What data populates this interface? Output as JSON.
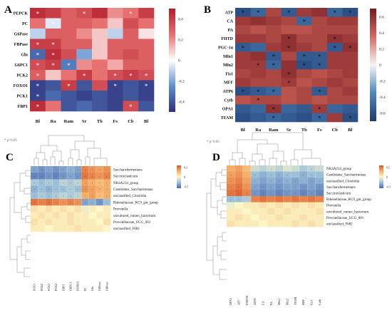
{
  "panels": [
    {
      "id": "A",
      "letter": "A",
      "type": "heatmap",
      "rows": [
        "PEPCK",
        "PC",
        "G6Pase",
        "FBPase",
        "Glu",
        "G6PC1",
        "PCK2",
        "FOXO1",
        "PCK1",
        "FBP1"
      ],
      "cols": [
        "Bl",
        "Ra",
        "Ram",
        "Sr",
        "Tb",
        "Fs",
        "Cb",
        "Bl"
      ],
      "legend_ticks": [
        "0.4",
        "0.2",
        "0",
        "-0.2",
        "-0.4"
      ],
      "legend_range": [
        -0.5,
        0.5
      ]
    },
    {
      "id": "B",
      "letter": "B",
      "type": "heatmap",
      "rows": [
        "ATP",
        "CA",
        "PA",
        "FHTD",
        "PGC-1α",
        "Mfn1",
        "Mfn2",
        "Fis1",
        "MFF",
        "ATP6",
        "Cytb",
        "OPA1",
        "TFAM"
      ],
      "cols": [
        "Bl",
        "Ra",
        "Ram",
        "Sr",
        "Tb",
        "Fs",
        "Cb",
        "Bl"
      ],
      "legend_ticks": [
        "0.6",
        "0.4",
        "0.2",
        "0",
        "-0.2",
        "-0.4",
        "-0.6"
      ],
      "legend_range": [
        -0.7,
        0.7
      ]
    },
    {
      "id": "C",
      "letter": "C",
      "type": "heatmap",
      "footnote": "* p<0.05",
      "rows": [
        "Saccharofermentans",
        "Succiniclasticum",
        "NK4A214_group",
        "Candidatus_Saccharimonas",
        "unclassified_Clostridia",
        "Rikenellaceae_RC9_gut_group",
        "Prevotella",
        "uncultured_rumen_bacterium",
        "Prevotellaceae_UCG_001",
        "unclassified_F082"
      ],
      "cols": [
        "FCK1",
        "PCK2",
        "FCK1",
        "PCK2",
        "FBP1",
        "G6PC1",
        "FOXO1",
        "PC",
        "Glu",
        "G6Pase",
        "FBPase"
      ],
      "legend_ticks": [
        "0.5",
        "0",
        "-0.5"
      ],
      "legend_range": [
        -0.6,
        0.6
      ]
    },
    {
      "id": "D",
      "letter": "D",
      "type": "heatmap",
      "footnote": "* p<0.05",
      "rows": [
        "NK4A214_group",
        "Candidatus_Saccharimonas",
        "unclassified_Clostridia",
        "Saccharofermentans",
        "Succiniclasticum",
        "Rikenellaceae_RC9_gut_group",
        "Prevotella",
        "uncultured_rumen_bacterium",
        "Prevotellaceae_UCG_001",
        "unclassified_F082"
      ],
      "cols": [
        "OPA1",
        "ATP",
        "PFHTD",
        "ATP6",
        "CA",
        "PA",
        "Mfn1",
        "Mfn2",
        "TFAM",
        "MFF",
        "Fis1",
        "Cytb"
      ],
      "legend_ticks": [
        "0.5",
        "0",
        "-0.5"
      ],
      "legend_range": [
        -0.6,
        0.6
      ]
    }
  ],
  "chart_data": [
    {
      "type": "heatmap",
      "panel": "A",
      "rows": [
        "PEPCK",
        "PC",
        "G6Pase",
        "FBPase",
        "Glu",
        "G6PC1",
        "PCK2",
        "FOXO1",
        "PCK1",
        "FBP1"
      ],
      "columns": [
        "Bl",
        "Ra",
        "Ram",
        "Sr",
        "Tb",
        "Fs",
        "Cb",
        "Bl"
      ],
      "values": [
        [
          0.45,
          0.4,
          0.3,
          0.35,
          0.45,
          0.2,
          0.25,
          0.4
        ],
        [
          0.25,
          -0.05,
          0.3,
          0.3,
          0.25,
          0.1,
          0.35,
          0.25
        ],
        [
          -0.1,
          0.3,
          0.3,
          0.2,
          0.1,
          -0.1,
          0.3,
          0.05
        ],
        [
          0.4,
          0.4,
          0.3,
          0.3,
          0.1,
          0.3,
          0.3,
          0.3
        ],
        [
          -0.35,
          0.45,
          0.35,
          -0.2,
          0.1,
          0.3,
          0.35,
          0.3
        ],
        [
          0.35,
          0.4,
          -0.3,
          0.2,
          0.25,
          0.15,
          0.3,
          0.3
        ],
        [
          0.3,
          0.1,
          0.25,
          0.4,
          0.25,
          0.35,
          0.4,
          0.35
        ],
        [
          -0.45,
          -0.4,
          0.4,
          -0.4,
          0.35,
          -0.45,
          -0.4,
          -0.45
        ],
        [
          -0.45,
          -0.35,
          -0.4,
          -0.45,
          -0.4,
          -0.45,
          -0.4,
          -0.45
        ],
        [
          0.45,
          0.25,
          -0.4,
          -0.35,
          -0.4,
          -0.45,
          0.35,
          -0.4
        ]
      ],
      "significant": [
        [
          1,
          0,
          0,
          1,
          0,
          0,
          1,
          0
        ],
        [
          0,
          1,
          0,
          0,
          0,
          0,
          0,
          0
        ],
        [
          0,
          0,
          0,
          0,
          0,
          0,
          0,
          0
        ],
        [
          1,
          1,
          0,
          0,
          0,
          0,
          0,
          0
        ],
        [
          1,
          1,
          0,
          0,
          0,
          0,
          0,
          0
        ],
        [
          1,
          1,
          1,
          0,
          0,
          0,
          0,
          0
        ],
        [
          1,
          0,
          0,
          1,
          0,
          1,
          1,
          1
        ],
        [
          1,
          0,
          1,
          0,
          0,
          1,
          0,
          1
        ],
        [
          1,
          0,
          0,
          0,
          0,
          0,
          0,
          0
        ],
        [
          1,
          0,
          0,
          0,
          0,
          0,
          1,
          0
        ]
      ],
      "color_scale": [
        -0.5,
        0.5
      ]
    },
    {
      "type": "heatmap",
      "panel": "B",
      "rows": [
        "ATP",
        "CA",
        "PA",
        "FHTD",
        "PGC-1α",
        "Mfn1",
        "Mfn2",
        "Fis1",
        "MFF",
        "ATP6",
        "Cytb",
        "OPA1",
        "TFAM"
      ],
      "columns": [
        "Bl",
        "Ra",
        "Ram",
        "Sr",
        "Tb",
        "Fs",
        "Cb",
        "Bl"
      ],
      "values": [
        [
          -0.6,
          -0.5,
          0.5,
          -0.55,
          0.55,
          0.6,
          -0.5,
          -0.6
        ],
        [
          0.55,
          0.6,
          0.55,
          0.5,
          -0.5,
          0.5,
          0.55,
          0.55
        ],
        [
          0.5,
          0.45,
          0.5,
          0.45,
          0.45,
          0.5,
          0.5,
          0.5
        ],
        [
          0.55,
          0.55,
          0.5,
          0.6,
          0.5,
          0.5,
          0.6,
          0.55
        ],
        [
          -0.55,
          -0.5,
          0.55,
          0.6,
          0.55,
          0.5,
          -0.55,
          0.6
        ],
        [
          0.55,
          0.6,
          -0.55,
          0.5,
          -0.55,
          -0.55,
          0.55,
          0.55
        ],
        [
          0.55,
          0.55,
          -0.5,
          0.6,
          -0.6,
          -0.55,
          0.55,
          0.55
        ],
        [
          0.5,
          0.55,
          0.5,
          0.6,
          0.5,
          0.45,
          0.5,
          0.55
        ],
        [
          0.55,
          0.5,
          0.5,
          0.55,
          0.45,
          0.5,
          0.55,
          0.5
        ],
        [
          -0.6,
          -0.55,
          -0.5,
          0.45,
          0.5,
          -0.55,
          0.5,
          0.55
        ],
        [
          0.45,
          0.5,
          0.5,
          0.45,
          0.5,
          0.45,
          0.5,
          0.5
        ],
        [
          -0.55,
          -0.5,
          0.6,
          -0.5,
          -0.55,
          0.55,
          -0.5,
          -0.55
        ],
        [
          -0.6,
          -0.55,
          -0.5,
          -0.55,
          -0.6,
          -0.5,
          0.55,
          -0.6
        ]
      ],
      "significant": [
        [
          1,
          1,
          0,
          1,
          0,
          0,
          1,
          1
        ],
        [
          0,
          0,
          0,
          0,
          1,
          0,
          0,
          0
        ],
        [
          0,
          0,
          0,
          0,
          0,
          0,
          0,
          0
        ],
        [
          0,
          0,
          0,
          1,
          0,
          0,
          1,
          0
        ],
        [
          1,
          0,
          0,
          1,
          0,
          0,
          1,
          1
        ],
        [
          0,
          0,
          1,
          0,
          1,
          1,
          0,
          0
        ],
        [
          0,
          1,
          1,
          0,
          1,
          1,
          0,
          0
        ],
        [
          0,
          0,
          0,
          1,
          0,
          0,
          0,
          0
        ],
        [
          0,
          0,
          0,
          1,
          0,
          0,
          0,
          0
        ],
        [
          1,
          1,
          1,
          0,
          0,
          1,
          0,
          0
        ],
        [
          0,
          1,
          0,
          0,
          0,
          0,
          0,
          0
        ],
        [
          0,
          0,
          1,
          0,
          0,
          1,
          0,
          0
        ],
        [
          0,
          0,
          1,
          0,
          0,
          1,
          0,
          1
        ]
      ],
      "color_scale": [
        -0.7,
        0.7
      ]
    },
    {
      "type": "heatmap",
      "panel": "C",
      "rows": [
        "Saccharofermentans",
        "Succiniclasticum",
        "NK4A214_group",
        "Candidatus_Saccharimonas",
        "unclassified_Clostridia",
        "Rikenellaceae_RC9_gut_group",
        "Prevotella",
        "uncultured_rumen_bacterium",
        "Prevotellaceae_UCG_001",
        "unclassified_F082"
      ],
      "columns": [
        "FCK1",
        "PCK2",
        "FCK1",
        "PCK2",
        "FBP1",
        "G6PC1",
        "FOXO1",
        "PC",
        "Glu",
        "G6Pase",
        "FBPase"
      ],
      "values": [
        [
          -0.4,
          -0.45,
          -0.4,
          -0.45,
          -0.4,
          -0.35,
          -0.4,
          0.45,
          0.4,
          0.35,
          0.4
        ],
        [
          -0.5,
          -0.5,
          -0.45,
          -0.5,
          -0.45,
          -0.4,
          -0.45,
          0.5,
          0.45,
          0.4,
          0.45
        ],
        [
          -0.25,
          -0.3,
          -0.25,
          -0.3,
          -0.2,
          -0.25,
          -0.2,
          0.35,
          0.3,
          0.25,
          0.3
        ],
        [
          -0.35,
          -0.3,
          -0.35,
          -0.3,
          -0.3,
          -0.25,
          -0.3,
          0.4,
          0.35,
          0.3,
          0.3
        ],
        [
          -0.3,
          -0.25,
          -0.3,
          -0.25,
          -0.2,
          -0.25,
          -0.2,
          0.3,
          0.35,
          0.25,
          0.3
        ],
        [
          0.5,
          0.45,
          0.5,
          0.45,
          0.4,
          0.45,
          0.4,
          -0.4,
          -0.35,
          -0.45,
          -0.3
        ],
        [
          0.1,
          0.05,
          0.1,
          0.05,
          0.1,
          0.05,
          0.1,
          -0.05,
          0.05,
          0.0,
          0.05
        ],
        [
          0.05,
          0.1,
          0.05,
          0.1,
          0.05,
          0.1,
          0.05,
          0.05,
          0.0,
          0.05,
          0.05
        ],
        [
          0.1,
          0.05,
          0.1,
          0.05,
          0.05,
          0.1,
          0.05,
          0.05,
          0.05,
          0.0,
          0.1
        ],
        [
          0.05,
          0.05,
          0.0,
          0.05,
          0.05,
          0.05,
          0.1,
          0.05,
          0.05,
          0.05,
          0.0
        ]
      ],
      "significant": [
        [
          1,
          1,
          1,
          1,
          1,
          1,
          1,
          1,
          1,
          1,
          1
        ],
        [
          1,
          1,
          1,
          1,
          1,
          1,
          1,
          1,
          1,
          1,
          1
        ],
        [
          1,
          1,
          1,
          1,
          1,
          1,
          1,
          1,
          1,
          1,
          1
        ],
        [
          1,
          1,
          1,
          1,
          1,
          1,
          1,
          1,
          1,
          1,
          1
        ],
        [
          1,
          1,
          1,
          1,
          1,
          1,
          1,
          1,
          1,
          1,
          1
        ],
        [
          1,
          1,
          1,
          1,
          1,
          1,
          1,
          1,
          1,
          1,
          1
        ],
        [
          0,
          0,
          0,
          0,
          0,
          0,
          0,
          0,
          0,
          0,
          0
        ],
        [
          0,
          0,
          0,
          0,
          0,
          0,
          0,
          0,
          0,
          0,
          0
        ],
        [
          0,
          0,
          0,
          0,
          0,
          0,
          0,
          0,
          0,
          0,
          0
        ],
        [
          0,
          0,
          0,
          0,
          0,
          0,
          0,
          0,
          0,
          0,
          0
        ]
      ],
      "color_scale": [
        -0.6,
        0.6
      ]
    },
    {
      "type": "heatmap",
      "panel": "D",
      "rows": [
        "NK4A214_group",
        "Candidatus_Saccharimonas",
        "unclassified_Clostridia",
        "Saccharofermentans",
        "Succiniclasticum",
        "Rikenellaceae_RC9_gut_group",
        "Prevotella",
        "uncultured_rumen_bacterium",
        "Prevotellaceae_UCG_001",
        "unclassified_F082"
      ],
      "columns": [
        "OPA1",
        "ATP",
        "PFHTD",
        "ATP6",
        "CA",
        "PA",
        "Mfn1",
        "Mfn2",
        "TFAM",
        "MFF",
        "Fis1",
        "Cytb"
      ],
      "values": [
        [
          0.3,
          0.35,
          0.25,
          -0.15,
          -0.2,
          -0.15,
          -0.2,
          -0.1,
          -0.15,
          -0.25,
          -0.2,
          -0.15
        ],
        [
          0.35,
          0.4,
          0.3,
          -0.3,
          -0.35,
          -0.3,
          -0.35,
          -0.3,
          -0.3,
          -0.35,
          -0.3,
          -0.3
        ],
        [
          0.4,
          0.45,
          0.35,
          -0.35,
          -0.4,
          -0.35,
          -0.4,
          -0.35,
          -0.4,
          -0.35,
          -0.4,
          -0.35
        ],
        [
          0.45,
          0.5,
          0.4,
          -0.4,
          -0.45,
          -0.4,
          -0.45,
          -0.4,
          -0.4,
          -0.45,
          -0.4,
          -0.45
        ],
        [
          0.5,
          0.55,
          0.45,
          -0.45,
          -0.5,
          -0.45,
          -0.5,
          -0.45,
          -0.45,
          -0.5,
          -0.45,
          -0.5
        ],
        [
          -0.3,
          -0.3,
          -0.25,
          0.45,
          0.5,
          0.45,
          0.5,
          0.45,
          0.5,
          0.45,
          0.5,
          0.45
        ],
        [
          -0.05,
          0.0,
          0.05,
          0.05,
          0.1,
          0.05,
          0.1,
          0.05,
          0.1,
          0.05,
          0.1,
          0.05
        ],
        [
          0.05,
          0.05,
          0.0,
          0.05,
          0.05,
          0.1,
          0.05,
          0.1,
          0.05,
          0.05,
          0.05,
          0.1
        ],
        [
          0.05,
          0.1,
          0.05,
          0.0,
          0.05,
          0.05,
          0.1,
          0.05,
          0.05,
          0.1,
          0.05,
          0.05
        ],
        [
          0.1,
          0.05,
          0.05,
          0.05,
          0.0,
          0.05,
          0.05,
          0.05,
          0.1,
          0.05,
          0.1,
          0.05
        ]
      ],
      "significant": [
        [
          0,
          0,
          0,
          0,
          0,
          1,
          0,
          0,
          0,
          0,
          1,
          0
        ],
        [
          1,
          0,
          0,
          1,
          0,
          1,
          1,
          1,
          0,
          1,
          1,
          0
        ],
        [
          1,
          0,
          0,
          1,
          0,
          1,
          1,
          1,
          1,
          0,
          1,
          1
        ],
        [
          1,
          1,
          0,
          1,
          1,
          1,
          1,
          1,
          1,
          1,
          1,
          1
        ],
        [
          1,
          1,
          1,
          1,
          1,
          1,
          1,
          1,
          1,
          1,
          1,
          1
        ],
        [
          1,
          1,
          0,
          0,
          0,
          0,
          0,
          0,
          0,
          0,
          0,
          0
        ],
        [
          0,
          0,
          0,
          0,
          0,
          0,
          0,
          0,
          0,
          0,
          0,
          0
        ],
        [
          0,
          0,
          0,
          0,
          0,
          0,
          0,
          0,
          0,
          0,
          0,
          0
        ],
        [
          0,
          0,
          0,
          0,
          0,
          0,
          0,
          0,
          0,
          0,
          0,
          0
        ],
        [
          0,
          0,
          0,
          0,
          0,
          0,
          0,
          0,
          0,
          0,
          0,
          0
        ]
      ],
      "color_scale": [
        -0.6,
        0.6
      ]
    }
  ]
}
